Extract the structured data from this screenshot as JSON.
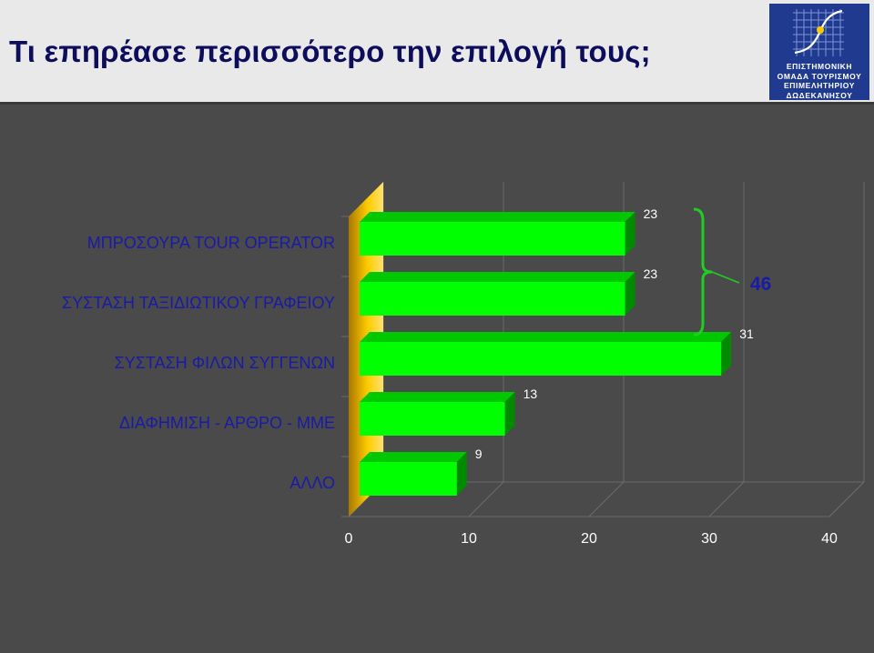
{
  "header": {
    "title": "Τι επηρέασε περισσότερο την επιλογή τους;",
    "logo_lines": [
      "ΕΠΙΣΤΗΜΟΝΙΚΗ",
      "ΟΜΑΔΑ ΤΟΥΡΙΣΜΟΥ",
      "ΕΠΙΜΕΛΗΤΗΡΙΟΥ",
      "ΔΩΔΕΚΑΝΗΣΟΥ"
    ]
  },
  "colors": {
    "bar_front": "#00ff00",
    "bar_top": "#00c800",
    "bar_side": "#008a00",
    "wall": "#ffcc00",
    "brace": "#22cc22",
    "gridline": "#6a6a6a",
    "label": "#1a1aa8"
  },
  "chart_data": {
    "type": "bar",
    "orientation": "horizontal",
    "style": "3d",
    "categories": [
      "ΜΠΡΟΣΟΥΡΑ TOUR OPERATOR",
      "ΣΥΣΤΑΣΗ ΤΑΞΙΔΙΩΤΙΚΟΥ ΓΡΑΦΕΙΟΥ",
      "ΣΥΣΤΑΣΗ ΦΙΛΩΝ ΣΥΓΓΕΝΩΝ",
      "ΔΙΑΦΗΜΙΣΗ - ΑΡΘΡΟ - ΜΜΕ",
      "ΑΛΛΟ"
    ],
    "values": [
      23,
      23,
      31,
      13,
      9
    ],
    "xlim": [
      0,
      40
    ],
    "xticks": [
      0,
      10,
      20,
      30,
      40
    ],
    "grid": true,
    "annotations": [
      {
        "type": "brace",
        "text": "46",
        "categories": [
          0,
          1
        ]
      }
    ]
  }
}
